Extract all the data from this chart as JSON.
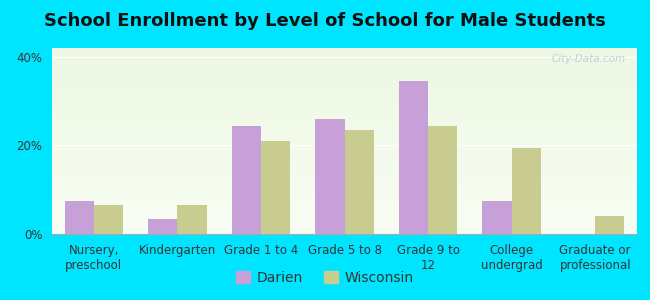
{
  "title": "School Enrollment by Level of School for Male Students",
  "categories": [
    "Nursery,\npreschool",
    "Kindergarten",
    "Grade 1 to 4",
    "Grade 5 to 8",
    "Grade 9 to\n12",
    "College\nundergrad",
    "Graduate or\nprofessional"
  ],
  "darien": [
    7.5,
    3.5,
    24.5,
    26.0,
    34.5,
    7.5,
    0.0
  ],
  "wisconsin": [
    6.5,
    6.5,
    21.0,
    23.5,
    24.5,
    19.5,
    4.0
  ],
  "darien_color": "#c8a0d8",
  "wisconsin_color": "#c8cc90",
  "bg_outer": "#00e5ff",
  "ylim": [
    0,
    42
  ],
  "yticks": [
    0,
    20,
    40
  ],
  "ytick_labels": [
    "0%",
    "20%",
    "40%"
  ],
  "watermark": "City-Data.com",
  "title_fontsize": 13,
  "legend_fontsize": 10,
  "tick_fontsize": 8.5
}
